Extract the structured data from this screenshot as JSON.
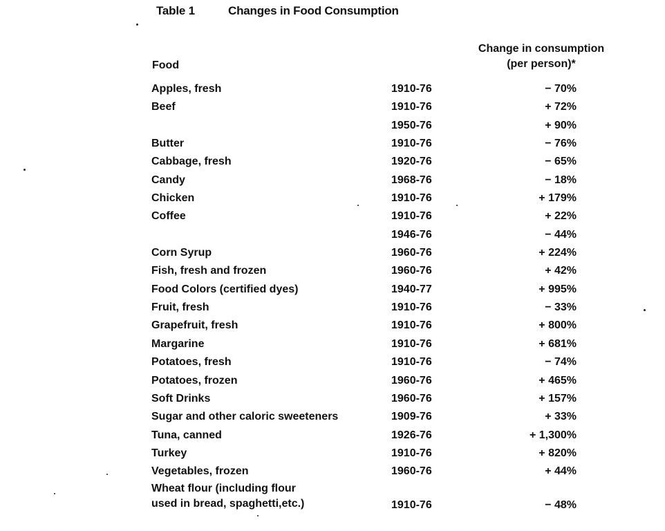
{
  "table": {
    "label": "Table 1",
    "title": "Changes in Food Consumption",
    "header_food": "Food",
    "header_change_line1": "Change in consumption",
    "header_change_line2": "(per person)*",
    "rows": [
      {
        "food": "Apples, fresh",
        "period": "1910-76",
        "change": "− 70%"
      },
      {
        "food": "Beef",
        "period": "1910-76",
        "change": "+ 72%"
      },
      {
        "food": "",
        "period": "1950-76",
        "change": "+ 90%"
      },
      {
        "food": "Butter",
        "period": "1910-76",
        "change": "− 76%"
      },
      {
        "food": "Cabbage, fresh",
        "period": "1920-76",
        "change": "− 65%"
      },
      {
        "food": "Candy",
        "period": "1968-76",
        "change": "− 18%"
      },
      {
        "food": "Chicken",
        "period": "1910-76",
        "change": "+ 179%"
      },
      {
        "food": "Coffee",
        "period": "1910-76",
        "change": "+ 22%"
      },
      {
        "food": "",
        "period": "1946-76",
        "change": "− 44%"
      },
      {
        "food": "Corn Syrup",
        "period": "1960-76",
        "change": "+ 224%"
      },
      {
        "food": "Fish, fresh and frozen",
        "period": "1960-76",
        "change": "+ 42%"
      },
      {
        "food": "Food Colors (certified dyes)",
        "period": "1940-77",
        "change": "+ 995%"
      },
      {
        "food": "Fruit, fresh",
        "period": "1910-76",
        "change": "− 33%"
      },
      {
        "food": "Grapefruit, fresh",
        "period": "1910-76",
        "change": "+ 800%"
      },
      {
        "food": "Margarine",
        "period": "1910-76",
        "change": "+ 681%"
      },
      {
        "food": "Potatoes, fresh",
        "period": "1910-76",
        "change": "− 74%"
      },
      {
        "food": "Potatoes, frozen",
        "period": "1960-76",
        "change": "+ 465%"
      },
      {
        "food": "Soft Drinks",
        "period": "1960-76",
        "change": "+ 157%"
      },
      {
        "food": "Sugar and other caloric sweeteners",
        "period": "1909-76",
        "change": "+ 33%"
      },
      {
        "food": "Tuna, canned",
        "period": "1926-76",
        "change": "+ 1,300%"
      },
      {
        "food": "Turkey",
        "period": "1910-76",
        "change": "+ 820%"
      },
      {
        "food": "Vegetables, frozen",
        "period": "1960-76",
        "change": "+ 44%"
      },
      {
        "food": "Wheat flour (including flour\nused in bread, spaghetti,etc.)",
        "period": "1910-76",
        "change": "− 48%"
      }
    ]
  }
}
